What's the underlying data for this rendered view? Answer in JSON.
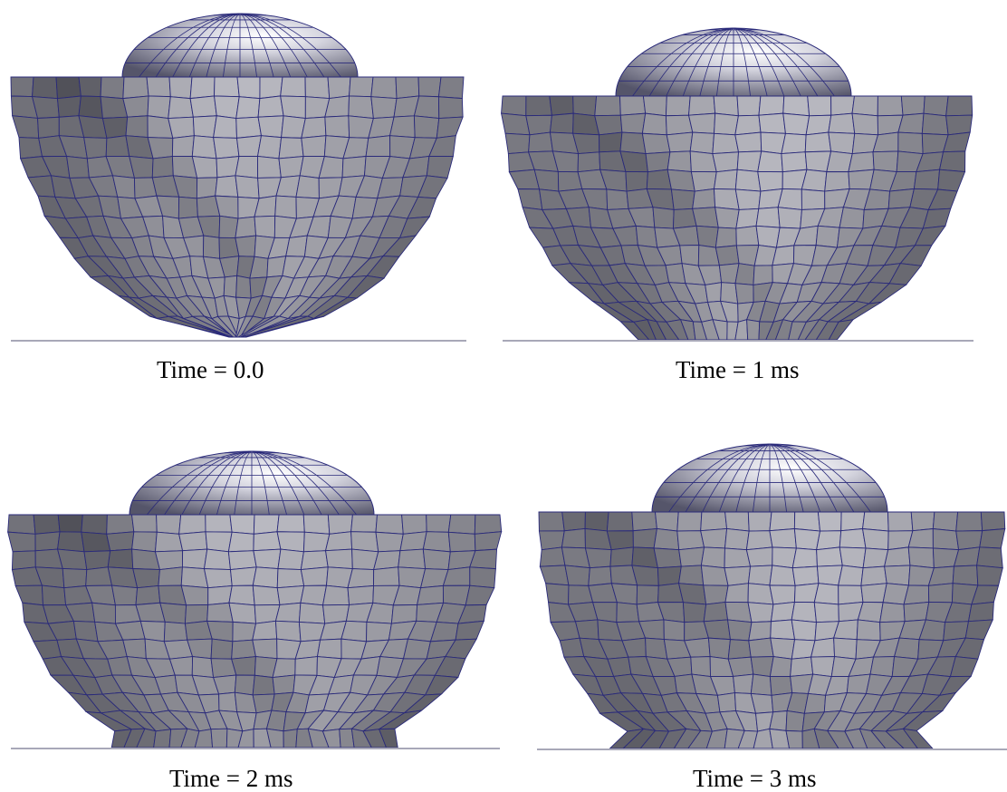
{
  "captions": {
    "t0": "Time = 0.0",
    "t1": "Time = 1 ms",
    "t2": "Time = 2 ms",
    "t3": "Time = 3 ms"
  },
  "colors": {
    "mesh_line": "#2a2a7a",
    "ground_line": "#a8a8b8",
    "shade_dark": "#2f2f35",
    "shade_light": "#d8d8de"
  }
}
